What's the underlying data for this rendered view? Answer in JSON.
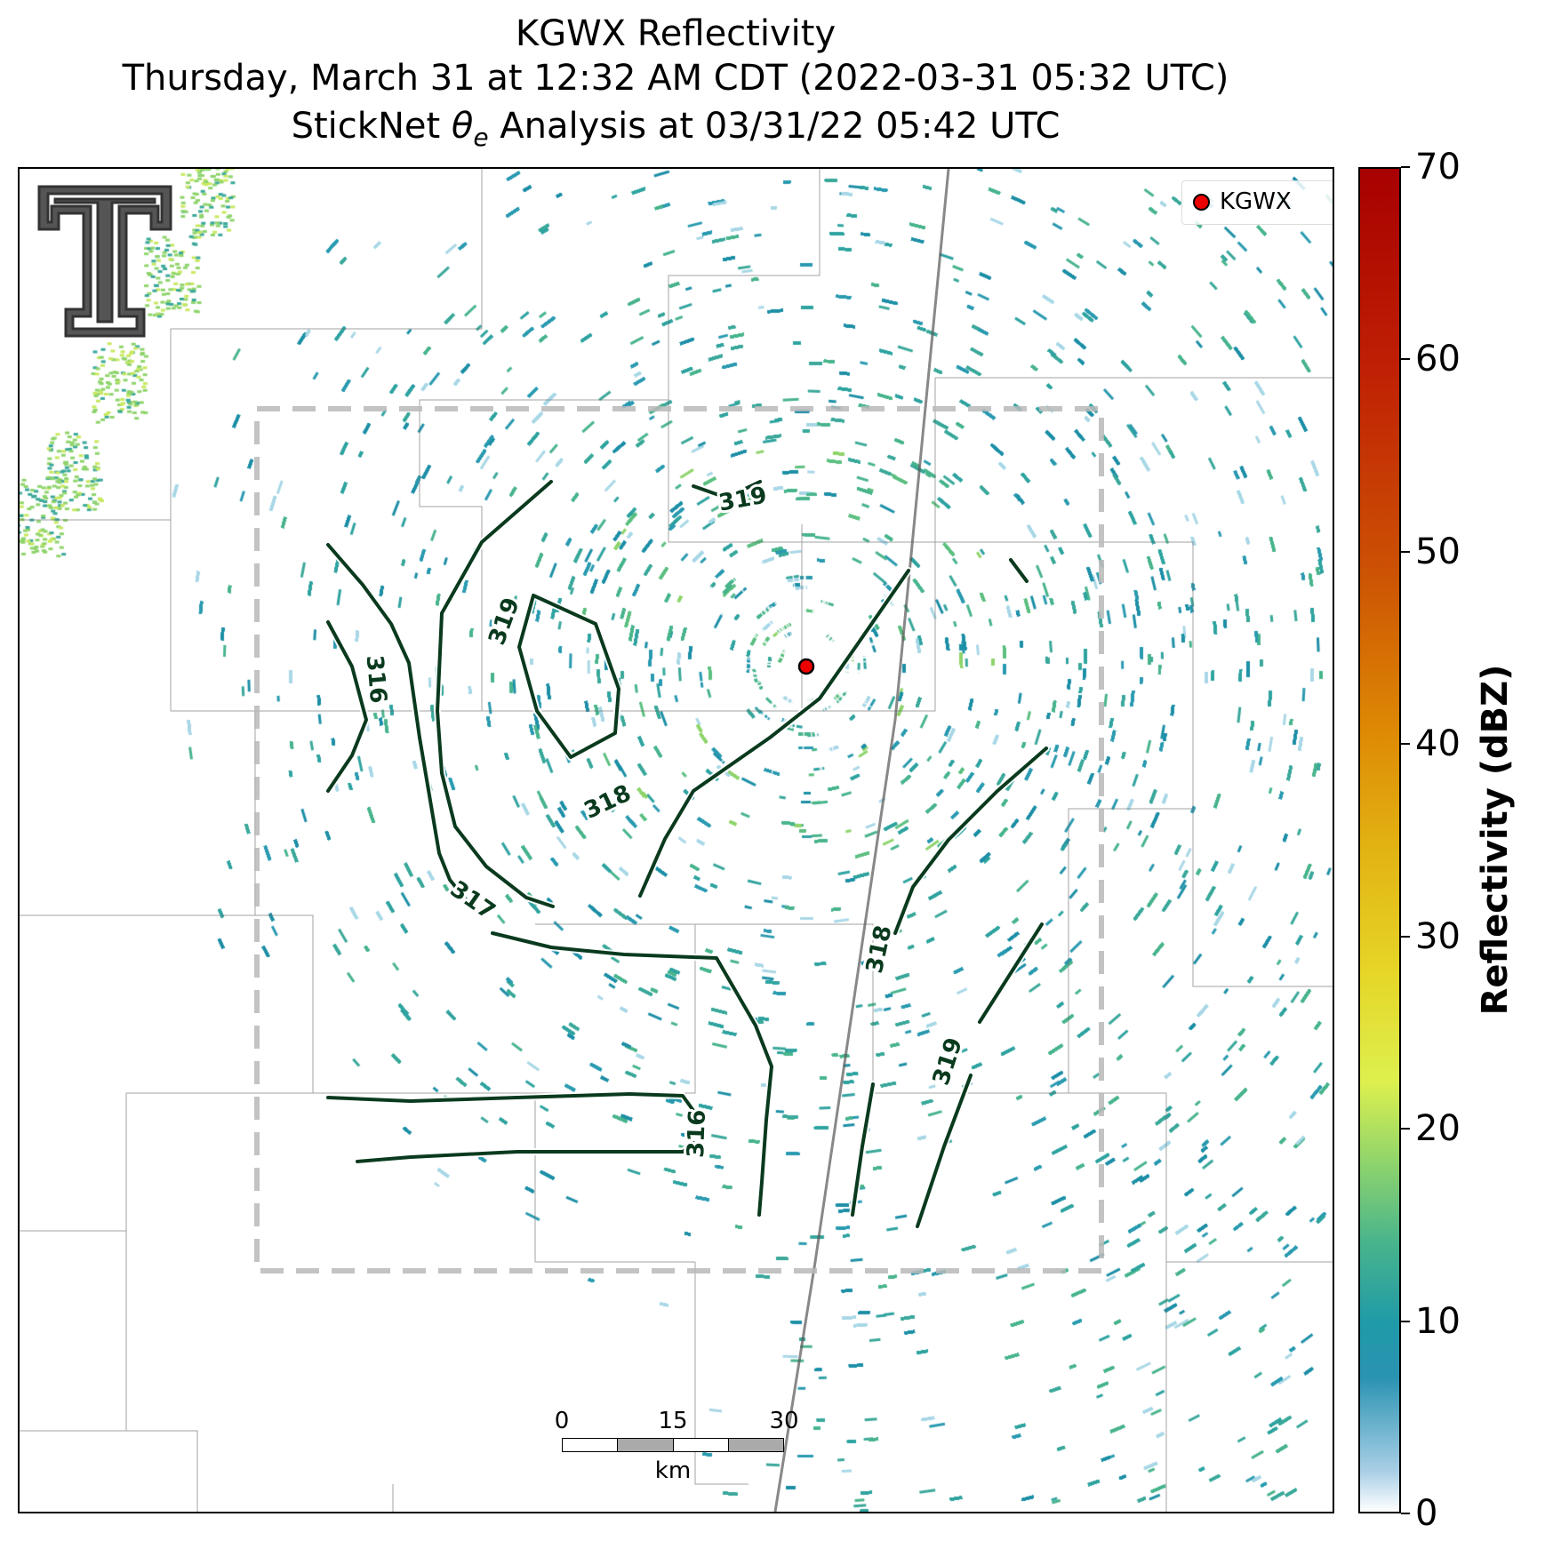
{
  "title": {
    "line1": "KGWX Reflectivity",
    "line2": "Thursday, March 31 at 12:32 AM CDT (2022-03-31 05:32 UTC)",
    "line3_prefix": "StickNet ",
    "line3_symbol": "θ",
    "line3_subscript": "e",
    "line3_suffix": " Analysis at 03/31/22 05:42 UTC"
  },
  "legend": {
    "label": "KGWX",
    "marker_color": "#ee0000"
  },
  "colorbar": {
    "label": "Reflectivity (dBZ)",
    "min": 0,
    "max": 70,
    "ticks": [
      "0",
      "10",
      "20",
      "30",
      "40",
      "50",
      "60",
      "70"
    ]
  },
  "scalebar": {
    "labels": [
      "0",
      "15",
      "30"
    ],
    "unit": "km"
  },
  "contours": {
    "color": "#0a3a1e",
    "labels": [
      "319",
      "319",
      "316",
      "318",
      "317",
      "318",
      "319",
      "316"
    ]
  },
  "colors": {
    "radar_base": "#2a93b2",
    "radar_high": "#8fd46c",
    "domain_box": "#b8b8b8"
  },
  "logo": {
    "name": "Texas Tech Double T",
    "colors": [
      "#555555",
      "#ffffff"
    ]
  }
}
